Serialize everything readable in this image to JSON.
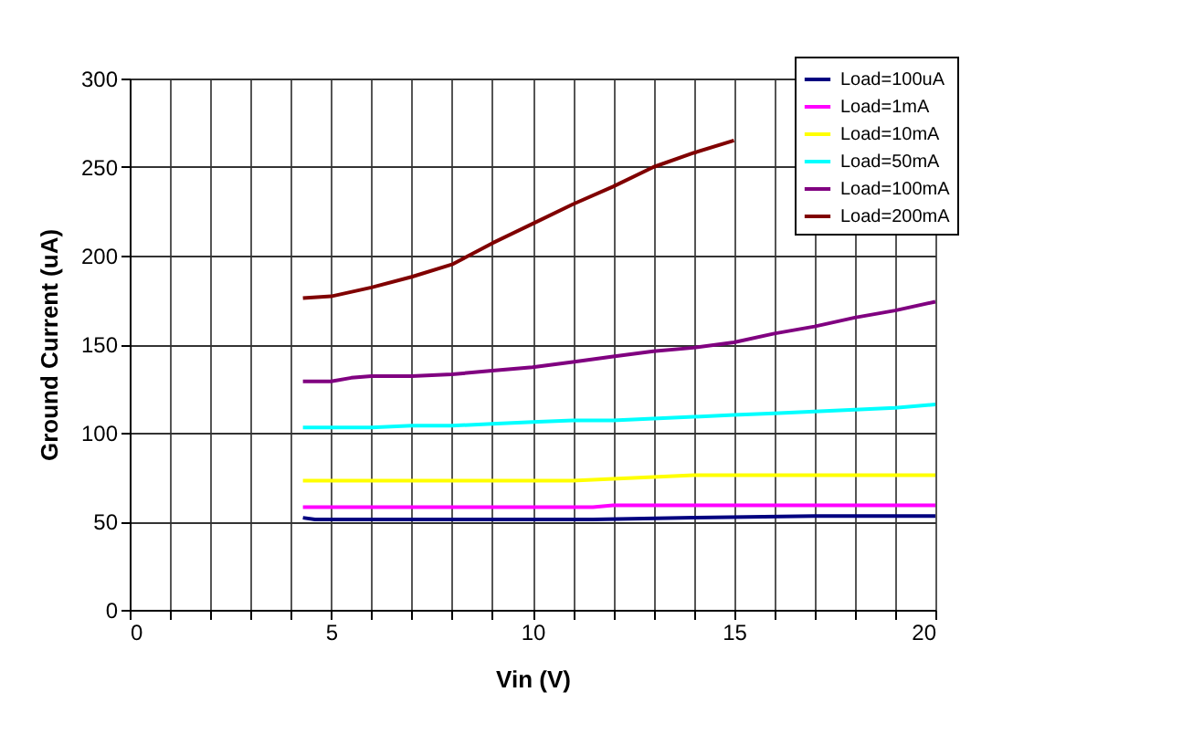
{
  "chart_data": {
    "type": "line",
    "xlabel": "Vin (V)",
    "ylabel": "Ground Current (uA)",
    "xlim": [
      0,
      20
    ],
    "ylim": [
      0,
      300
    ],
    "xticks": [
      0,
      {
        "value": 1,
        "label": null
      },
      {
        "value": 2,
        "label": null
      },
      {
        "value": 3,
        "label": null
      },
      {
        "value": 4,
        "label": null
      },
      5,
      {
        "value": 6,
        "label": null
      },
      {
        "value": 7,
        "label": null
      },
      {
        "value": 8,
        "label": null
      },
      {
        "value": 9,
        "label": null
      },
      10,
      {
        "value": 11,
        "label": null
      },
      {
        "value": 12,
        "label": null
      },
      {
        "value": 13,
        "label": null
      },
      {
        "value": 14,
        "label": null
      },
      15,
      {
        "value": 16,
        "label": null
      },
      {
        "value": 17,
        "label": null
      },
      {
        "value": 18,
        "label": null
      },
      {
        "value": 19,
        "label": null
      },
      20
    ],
    "yticks": [
      0,
      50,
      100,
      150,
      200,
      250,
      300
    ],
    "grid": true,
    "legend": "top right",
    "marker": "none",
    "line_style": "solid",
    "series": [
      {
        "name": "Load=100uA",
        "color": "#000080",
        "x": [
          4.3,
          4.6,
          11.5,
          14,
          17,
          20
        ],
        "values": [
          52,
          51,
          51,
          52,
          53,
          53
        ]
      },
      {
        "name": "Load=1mA",
        "color": "#ff00ff",
        "x": [
          4.3,
          11.5,
          12,
          20
        ],
        "values": [
          58,
          58,
          59,
          59
        ]
      },
      {
        "name": "Load=10mA",
        "color": "#ffff00",
        "x": [
          4.3,
          11,
          12,
          13,
          14,
          20
        ],
        "values": [
          73,
          73,
          74,
          75,
          76,
          76
        ]
      },
      {
        "name": "Load=50mA",
        "color": "#00ffff",
        "x": [
          4.3,
          6,
          7,
          8,
          9,
          10,
          11,
          12,
          13,
          14,
          15,
          16,
          17,
          18,
          19,
          20
        ],
        "values": [
          103,
          103,
          104,
          104,
          105,
          106,
          107,
          107,
          108,
          109,
          110,
          111,
          112,
          113,
          114,
          116
        ]
      },
      {
        "name": "Load=100mA",
        "color": "#800080",
        "x": [
          4.3,
          5,
          5.5,
          6,
          7,
          8,
          9,
          10,
          11,
          12,
          13,
          14,
          15,
          16,
          17,
          18,
          19,
          20
        ],
        "values": [
          129,
          129,
          131,
          132,
          132,
          133,
          135,
          137,
          140,
          143,
          146,
          148,
          151,
          156,
          160,
          165,
          169,
          174
        ]
      },
      {
        "name": "Load=200mA",
        "color": "#800000",
        "x": [
          4.3,
          5,
          6,
          7,
          8,
          9,
          10,
          11,
          12,
          13,
          14,
          15
        ],
        "values": [
          176,
          177,
          182,
          188,
          195,
          207,
          218,
          229,
          239,
          250,
          258,
          265
        ]
      }
    ]
  }
}
